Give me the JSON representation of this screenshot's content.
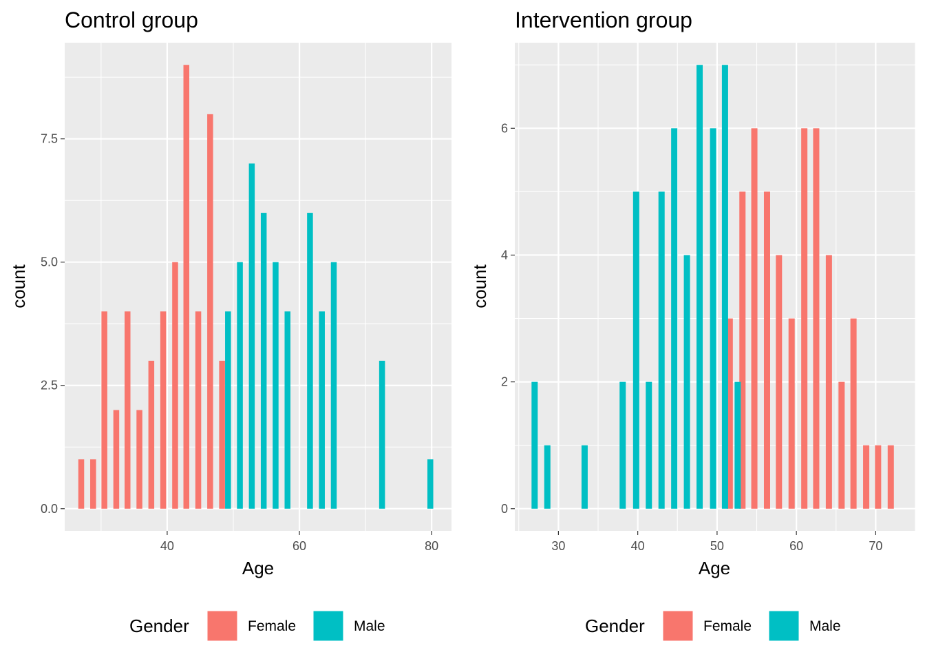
{
  "chart_data": [
    {
      "type": "bar",
      "title": "Control group",
      "xlabel": "Age",
      "ylabel": "count",
      "xlim": [
        24.5,
        83
      ],
      "ylim": [
        -0.45,
        9.45
      ],
      "xticks": [
        40,
        60,
        80
      ],
      "xtick_labels": [
        "40",
        "60",
        "80"
      ],
      "yticks": [
        0,
        2.5,
        5,
        7.5
      ],
      "ytick_labels": [
        "0.0",
        "2.5",
        "5.0",
        "7.5"
      ],
      "grid": true,
      "legend": {
        "title": "Gender",
        "position": "bottom",
        "entries": [
          {
            "label": "Female",
            "color": "#F8766D"
          },
          {
            "label": "Male",
            "color": "#00BFC4"
          }
        ]
      },
      "series": [
        {
          "name": "Female",
          "color": "#F8766D",
          "x": [
            27,
            28.8,
            30.5,
            32.3,
            34,
            35.8,
            37.6,
            39.4,
            41.2,
            42.9,
            44.7,
            46.5,
            48.3
          ],
          "values": [
            1,
            1,
            4,
            2,
            4,
            2,
            3,
            4,
            5,
            9,
            4,
            8,
            3
          ]
        },
        {
          "name": "Male",
          "color": "#00BFC4",
          "x": [
            49.2,
            51,
            52.8,
            54.6,
            56.4,
            58.2,
            61.6,
            63.4,
            65.2,
            72.5,
            79.8
          ],
          "values": [
            4,
            5,
            7,
            6,
            5,
            4,
            6,
            4,
            5,
            3,
            1
          ]
        }
      ]
    },
    {
      "type": "bar",
      "title": "Intervention group",
      "xlabel": "Age",
      "ylabel": "count",
      "xlim": [
        24.5,
        75
      ],
      "ylim": [
        -0.35,
        7.35
      ],
      "xticks": [
        30,
        40,
        50,
        60,
        70
      ],
      "xtick_labels": [
        "30",
        "40",
        "50",
        "60",
        "70"
      ],
      "yticks": [
        0,
        2,
        4,
        6
      ],
      "ytick_labels": [
        "0",
        "2",
        "4",
        "6"
      ],
      "grid": true,
      "legend": {
        "title": "Gender",
        "position": "bottom",
        "entries": [
          {
            "label": "Female",
            "color": "#F8766D"
          },
          {
            "label": "Male",
            "color": "#00BFC4"
          }
        ]
      },
      "series": [
        {
          "name": "Female",
          "color": "#F8766D",
          "x": [
            51.6,
            53.2,
            54.7,
            56.3,
            57.8,
            59.4,
            61,
            62.5,
            64.1,
            65.7,
            67.2,
            68.8,
            70.3,
            71.9
          ],
          "values": [
            3,
            5,
            6,
            5,
            4,
            3,
            6,
            6,
            4,
            2,
            3,
            1,
            1,
            1
          ]
        },
        {
          "name": "Male",
          "color": "#00BFC4",
          "x": [
            27,
            28.6,
            33.3,
            38.1,
            39.8,
            41.4,
            43,
            44.6,
            46.2,
            47.8,
            49.5,
            51,
            52.6
          ],
          "values": [
            2,
            1,
            1,
            2,
            5,
            2,
            5,
            6,
            4,
            7,
            6,
            7,
            2
          ]
        }
      ]
    }
  ]
}
